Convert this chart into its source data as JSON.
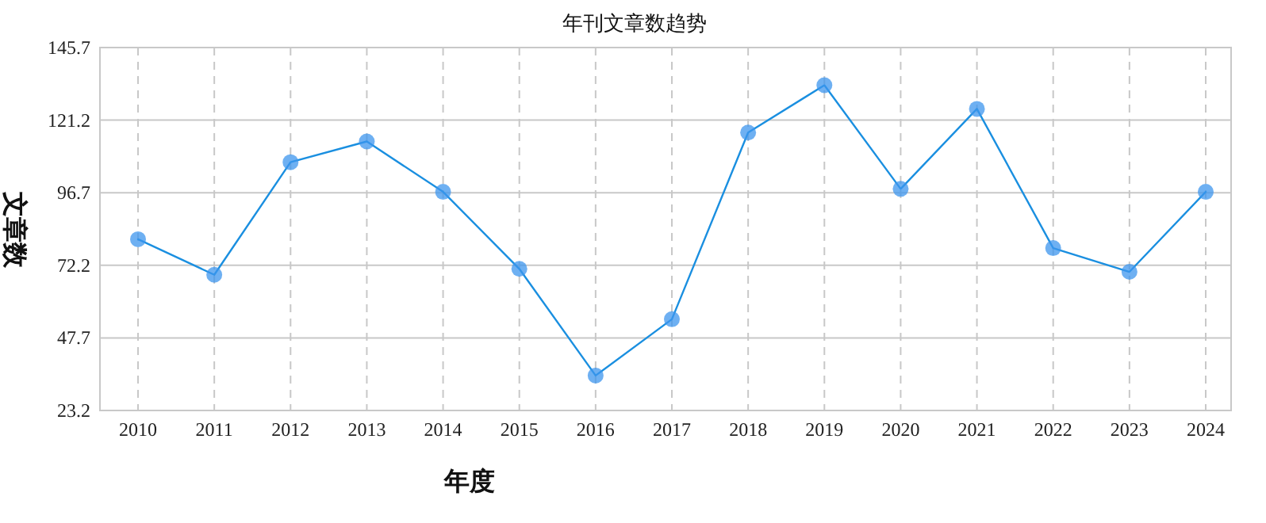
{
  "chart_data": {
    "type": "line",
    "title": "年刊文章数趋势",
    "xlabel": "年度",
    "ylabel": "文章数",
    "categories": [
      "2010",
      "2011",
      "2012",
      "2013",
      "2014",
      "2015",
      "2016",
      "2017",
      "2018",
      "2019",
      "2020",
      "2021",
      "2022",
      "2023",
      "2024"
    ],
    "series": [
      {
        "color": "#1a8fe0",
        "values": [
          81,
          69,
          107,
          114,
          97,
          71,
          35,
          54,
          117,
          133,
          98,
          125,
          78,
          70,
          97
        ]
      }
    ],
    "ylim": [
      23.2,
      145.7
    ],
    "yticks": [
      23.2,
      47.7,
      72.2,
      96.7,
      121.2,
      145.7
    ],
    "grid": true,
    "marker": "circle",
    "line_style": "solid"
  }
}
